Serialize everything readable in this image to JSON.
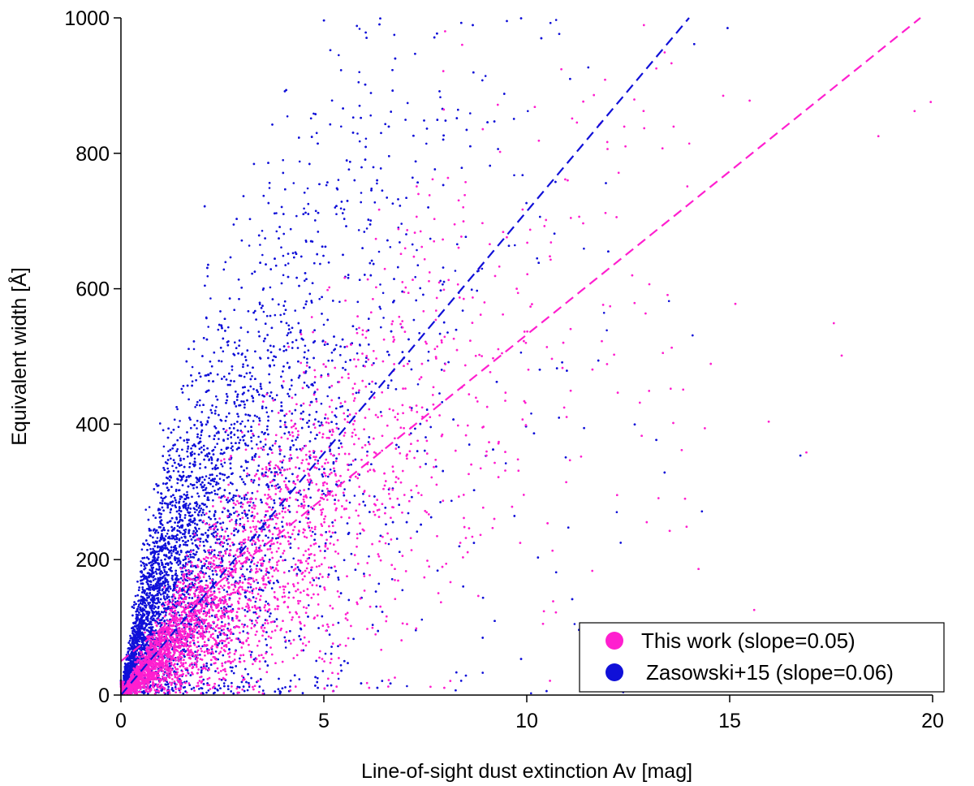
{
  "chart_data": {
    "type": "scatter",
    "title": "",
    "xlabel": "Line-of-sight dust extinction Av [mag]",
    "ylabel": "Equivalent width [Å]",
    "xlim": [
      0,
      20
    ],
    "ylim": [
      0,
      1000
    ],
    "xticks": [
      "0",
      "5",
      "10",
      "15",
      "20"
    ],
    "yticks": [
      "0",
      "200",
      "400",
      "600",
      "800",
      "1000"
    ],
    "grid": false,
    "legend_position": "bottom-right",
    "series": [
      {
        "name": "This work (slope=0.05)",
        "color": "#ff1fcf",
        "marker": "dot",
        "fit_line": {
          "style": "dashed",
          "x": [
            0,
            19.7
          ],
          "y": [
            50,
            1000
          ]
        },
        "density_samples": [
          {
            "x": 1.0,
            "y": 60
          },
          {
            "x": 2.0,
            "y": 120
          },
          {
            "x": 3.0,
            "y": 170
          },
          {
            "x": 4.0,
            "y": 230
          },
          {
            "x": 5.0,
            "y": 280
          },
          {
            "x": 6.0,
            "y": 350
          },
          {
            "x": 7.0,
            "y": 400
          },
          {
            "x": 8.0,
            "y": 450
          },
          {
            "x": 9.0,
            "y": 500
          },
          {
            "x": 10.0,
            "y": 540
          },
          {
            "x": 12.0,
            "y": 600
          },
          {
            "x": 14.0,
            "y": 650
          }
        ]
      },
      {
        "name": "Zasowski+15 (slope=0.06)",
        "color": "#1010d8",
        "marker": "dot",
        "fit_line": {
          "style": "dashed",
          "x": [
            0,
            14.0
          ],
          "y": [
            0,
            1000
          ]
        },
        "density_samples": [
          {
            "x": 0.5,
            "y": 90
          },
          {
            "x": 1.0,
            "y": 150
          },
          {
            "x": 1.5,
            "y": 200
          },
          {
            "x": 2.0,
            "y": 240
          },
          {
            "x": 3.0,
            "y": 300
          },
          {
            "x": 4.0,
            "y": 380
          },
          {
            "x": 5.0,
            "y": 450
          },
          {
            "x": 6.0,
            "y": 520
          },
          {
            "x": 7.0,
            "y": 580
          },
          {
            "x": 8.0,
            "y": 640
          },
          {
            "x": 10.0,
            "y": 720
          },
          {
            "x": 12.0,
            "y": 800
          }
        ]
      }
    ]
  }
}
